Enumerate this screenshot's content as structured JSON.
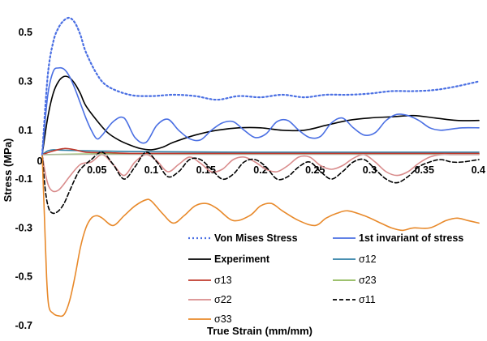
{
  "chart_data": {
    "type": "line",
    "title": "",
    "xlabel": "True Strain (mm/mm)",
    "ylabel": "Stress (MPa)",
    "xlim": [
      0,
      0.4
    ],
    "ylim": [
      -0.7,
      0.6
    ],
    "x_ticks": [
      0.05,
      0.1,
      0.15,
      0.2,
      0.25,
      0.3,
      0.35,
      0.4
    ],
    "x_tick_labels": [
      "0.05",
      "0.1",
      "0.15",
      "0.2",
      "0.25",
      "0.3",
      "0.35",
      "0.4"
    ],
    "y_ticks": [
      0.5,
      0.3,
      0.1,
      -0.1,
      -0.3,
      -0.5,
      -0.7
    ],
    "y_tick_labels": [
      "0.5",
      "0.3",
      "0.1",
      "-0.1",
      "-0.3",
      "-0.5",
      "-0.7"
    ],
    "x_origin_label": "0",
    "grid": false,
    "legend_position": "bottom-right",
    "series": [
      {
        "name": "Von Mises Stress",
        "color": "#4a6fe3",
        "dash": "dotted",
        "bold_label": true,
        "x": [
          0,
          0.005,
          0.01,
          0.015,
          0.02,
          0.025,
          0.03,
          0.035,
          0.04,
          0.05,
          0.06,
          0.08,
          0.1,
          0.12,
          0.14,
          0.16,
          0.18,
          0.2,
          0.22,
          0.24,
          0.26,
          0.28,
          0.3,
          0.32,
          0.34,
          0.36,
          0.38,
          0.4
        ],
        "values": [
          0,
          0.32,
          0.46,
          0.52,
          0.55,
          0.56,
          0.54,
          0.49,
          0.42,
          0.33,
          0.28,
          0.245,
          0.24,
          0.245,
          0.24,
          0.225,
          0.24,
          0.235,
          0.245,
          0.235,
          0.245,
          0.245,
          0.25,
          0.26,
          0.26,
          0.265,
          0.28,
          0.3
        ]
      },
      {
        "name": "1st invariant of stress",
        "color": "#4a6fe3",
        "dash": "solid",
        "bold_label": true,
        "x": [
          0,
          0.005,
          0.01,
          0.015,
          0.02,
          0.025,
          0.03,
          0.035,
          0.04,
          0.045,
          0.05,
          0.055,
          0.065,
          0.075,
          0.085,
          0.095,
          0.105,
          0.115,
          0.125,
          0.135,
          0.145,
          0.155,
          0.165,
          0.175,
          0.185,
          0.195,
          0.205,
          0.215,
          0.225,
          0.235,
          0.245,
          0.255,
          0.265,
          0.275,
          0.285,
          0.295,
          0.305,
          0.315,
          0.325,
          0.335,
          0.345,
          0.355,
          0.365,
          0.375,
          0.385,
          0.4
        ],
        "values": [
          0,
          0.24,
          0.34,
          0.355,
          0.35,
          0.32,
          0.27,
          0.21,
          0.15,
          0.1,
          0.065,
          0.08,
          0.135,
          0.15,
          0.07,
          0.05,
          0.12,
          0.145,
          0.1,
          0.065,
          0.06,
          0.1,
          0.13,
          0.135,
          0.1,
          0.07,
          0.085,
          0.135,
          0.14,
          0.1,
          0.07,
          0.075,
          0.13,
          0.15,
          0.11,
          0.08,
          0.09,
          0.14,
          0.165,
          0.16,
          0.14,
          0.11,
          0.1,
          0.105,
          0.11,
          0.11
        ]
      },
      {
        "name": "Experiment",
        "color": "#000000",
        "dash": "solid",
        "bold_label": true,
        "x": [
          0,
          0.005,
          0.01,
          0.015,
          0.02,
          0.025,
          0.03,
          0.035,
          0.04,
          0.05,
          0.06,
          0.07,
          0.08,
          0.09,
          0.1,
          0.11,
          0.12,
          0.14,
          0.16,
          0.18,
          0.2,
          0.22,
          0.24,
          0.26,
          0.28,
          0.3,
          0.32,
          0.34,
          0.36,
          0.38,
          0.4
        ],
        "values": [
          0,
          0.15,
          0.25,
          0.3,
          0.32,
          0.315,
          0.29,
          0.25,
          0.2,
          0.14,
          0.09,
          0.06,
          0.04,
          0.025,
          0.02,
          0.03,
          0.05,
          0.08,
          0.1,
          0.11,
          0.11,
          0.1,
          0.1,
          0.12,
          0.14,
          0.15,
          0.155,
          0.16,
          0.15,
          0.14,
          0.14
        ]
      },
      {
        "name": "σ12",
        "color": "#2f7fa6",
        "dash": "solid",
        "bold_label": false,
        "x": [
          0,
          0.005,
          0.01,
          0.02,
          0.05,
          0.1,
          0.2,
          0.3,
          0.4
        ],
        "values": [
          0,
          0.015,
          0.02,
          0.018,
          0.015,
          0.012,
          0.01,
          0.01,
          0.01
        ]
      },
      {
        "name": "σ13",
        "color": "#c0392b",
        "dash": "solid",
        "bold_label": false,
        "x": [
          0,
          0.01,
          0.02,
          0.03,
          0.04,
          0.06,
          0.08,
          0.1,
          0.2,
          0.3,
          0.4
        ],
        "values": [
          0,
          0.015,
          0.025,
          0.02,
          0.01,
          0.008,
          0.005,
          0.005,
          0.005,
          0.005,
          0.005
        ]
      },
      {
        "name": "σ23",
        "color": "#8fb85a",
        "dash": "solid",
        "bold_label": false,
        "x": [
          0,
          0.05,
          0.1,
          0.2,
          0.3,
          0.4
        ],
        "values": [
          0,
          0.003,
          0.003,
          0.003,
          0.003,
          0.003
        ]
      },
      {
        "name": "σ22",
        "color": "#d98c8c",
        "dash": "solid",
        "bold_label": false,
        "x": [
          0,
          0.003,
          0.006,
          0.01,
          0.015,
          0.02,
          0.025,
          0.035,
          0.045,
          0.055,
          0.065,
          0.075,
          0.085,
          0.095,
          0.105,
          0.115,
          0.125,
          0.135,
          0.145,
          0.155,
          0.165,
          0.175,
          0.185,
          0.195,
          0.205,
          0.215,
          0.225,
          0.235,
          0.245,
          0.255,
          0.265,
          0.275,
          0.285,
          0.295,
          0.305,
          0.315,
          0.325,
          0.335,
          0.345,
          0.355,
          0.365,
          0.375,
          0.385,
          0.4
        ],
        "values": [
          0,
          -0.08,
          -0.13,
          -0.15,
          -0.145,
          -0.12,
          -0.09,
          -0.04,
          -0.03,
          0,
          -0.04,
          -0.085,
          -0.03,
          0,
          -0.025,
          -0.07,
          -0.04,
          -0.01,
          -0.035,
          -0.07,
          -0.06,
          -0.02,
          -0.01,
          -0.03,
          -0.06,
          -0.07,
          -0.045,
          -0.01,
          -0.01,
          -0.045,
          -0.06,
          -0.045,
          -0.015,
          0,
          -0.03,
          -0.07,
          -0.085,
          -0.07,
          -0.035,
          -0.01,
          0,
          0,
          0,
          0
        ]
      },
      {
        "name": "σ11",
        "color": "#000000",
        "dash": "dashed",
        "bold_label": false,
        "x": [
          0,
          0.003,
          0.006,
          0.01,
          0.015,
          0.02,
          0.025,
          0.03,
          0.035,
          0.045,
          0.055,
          0.065,
          0.075,
          0.085,
          0.095,
          0.105,
          0.115,
          0.125,
          0.135,
          0.145,
          0.155,
          0.165,
          0.175,
          0.185,
          0.195,
          0.205,
          0.215,
          0.225,
          0.235,
          0.245,
          0.255,
          0.265,
          0.275,
          0.285,
          0.295,
          0.305,
          0.315,
          0.325,
          0.335,
          0.345,
          0.355,
          0.365,
          0.375,
          0.385,
          0.4
        ],
        "values": [
          0,
          -0.15,
          -0.22,
          -0.24,
          -0.23,
          -0.2,
          -0.15,
          -0.1,
          -0.06,
          -0.02,
          0.01,
          -0.04,
          -0.1,
          -0.05,
          0.01,
          -0.03,
          -0.09,
          -0.07,
          -0.02,
          -0.02,
          -0.06,
          -0.1,
          -0.08,
          -0.03,
          -0.02,
          -0.05,
          -0.1,
          -0.09,
          -0.05,
          -0.03,
          -0.07,
          -0.1,
          -0.07,
          -0.03,
          -0.02,
          -0.06,
          -0.1,
          -0.115,
          -0.09,
          -0.05,
          -0.03,
          -0.02,
          -0.03,
          -0.03,
          -0.02
        ]
      },
      {
        "name": "σ33",
        "color": "#e8892a",
        "dash": "solid",
        "bold_label": false,
        "x": [
          0,
          0.002,
          0.004,
          0.006,
          0.01,
          0.015,
          0.02,
          0.025,
          0.03,
          0.035,
          0.04,
          0.045,
          0.05,
          0.055,
          0.065,
          0.075,
          0.085,
          0.095,
          0.1,
          0.11,
          0.12,
          0.13,
          0.14,
          0.15,
          0.16,
          0.175,
          0.19,
          0.2,
          0.21,
          0.22,
          0.235,
          0.25,
          0.26,
          0.27,
          0.28,
          0.295,
          0.31,
          0.32,
          0.33,
          0.34,
          0.355,
          0.37,
          0.38,
          0.39,
          0.4
        ],
        "values": [
          0,
          -0.25,
          -0.5,
          -0.62,
          -0.65,
          -0.66,
          -0.655,
          -0.6,
          -0.5,
          -0.38,
          -0.3,
          -0.26,
          -0.25,
          -0.26,
          -0.29,
          -0.25,
          -0.21,
          -0.185,
          -0.19,
          -0.24,
          -0.28,
          -0.25,
          -0.21,
          -0.2,
          -0.22,
          -0.27,
          -0.25,
          -0.21,
          -0.2,
          -0.23,
          -0.27,
          -0.29,
          -0.26,
          -0.24,
          -0.23,
          -0.25,
          -0.28,
          -0.3,
          -0.31,
          -0.3,
          -0.3,
          -0.27,
          -0.26,
          -0.27,
          -0.28
        ]
      }
    ]
  }
}
